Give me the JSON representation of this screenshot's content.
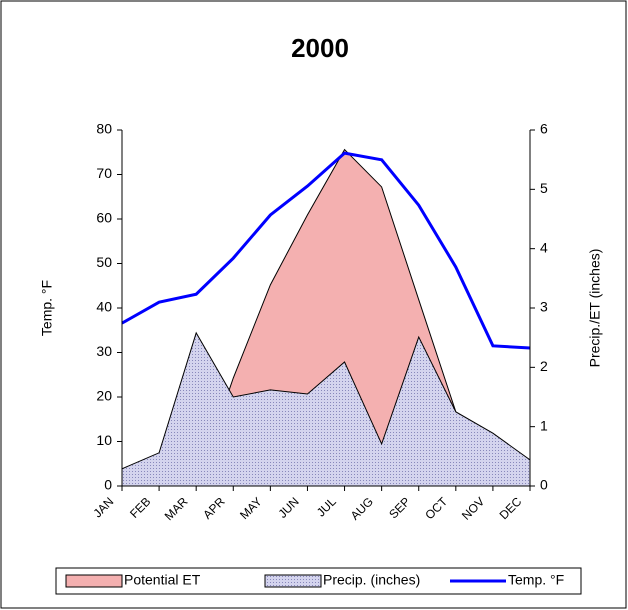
{
  "chart_data": {
    "type": "area",
    "title": "2000",
    "y_label": "Temp. °F",
    "y2_label": "Precip./ET (inches)",
    "categories": [
      "JAN",
      "FEB",
      "MAR",
      "APR",
      "MAY",
      "JUN",
      "JUL",
      "AUG",
      "SEP",
      "OCT",
      "NOV",
      "DEC"
    ],
    "ylim": [
      0,
      80
    ],
    "yticks": [
      0,
      10,
      20,
      30,
      40,
      50,
      60,
      70,
      80
    ],
    "y2lim": [
      0,
      6
    ],
    "y2ticks": [
      0,
      1,
      2,
      3,
      4,
      5,
      6
    ],
    "legend": "bottom",
    "series": [
      {
        "name": "Potential ET",
        "type": "area",
        "axis": "y2",
        "color": "#f4b0b0",
        "values": [
          0,
          0,
          0,
          1.82,
          3.39,
          4.57,
          5.67,
          5.04,
          3.14,
          1.25,
          0,
          0
        ]
      },
      {
        "name": "Precip. (inches)",
        "type": "area",
        "axis": "y2",
        "color": "#d4d4ee",
        "values": [
          0.29,
          0.56,
          2.58,
          1.5,
          1.62,
          1.55,
          2.09,
          0.71,
          2.51,
          1.25,
          0.89,
          0.44
        ]
      },
      {
        "name": "Temp. °F",
        "type": "line",
        "axis": "y",
        "color": "#0000ff",
        "values": [
          36.6,
          41.3,
          43.1,
          51.2,
          60.9,
          67.4,
          74.8,
          73.3,
          63.1,
          49.2,
          31.5,
          31.0
        ]
      }
    ]
  }
}
